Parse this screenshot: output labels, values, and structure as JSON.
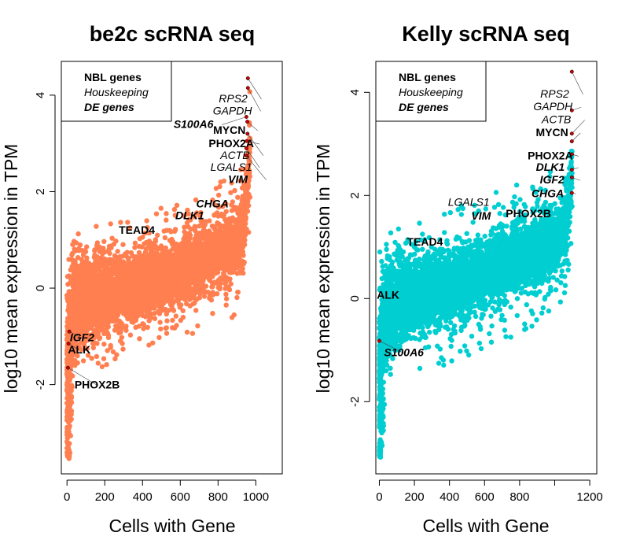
{
  "chart_data": [
    {
      "type": "scatter",
      "title": "be2c scRNA seq",
      "xlabel": "Cells with Gene",
      "ylabel": "log10 mean expression in TPM",
      "xlim": [
        -30,
        1140
      ],
      "ylim": [
        -3.85,
        4.7
      ],
      "xticks": [
        0,
        200,
        400,
        600,
        800,
        1000
      ],
      "yticks": [
        -2,
        0,
        2,
        4
      ],
      "color": "#FF7F50",
      "n_cells": 970,
      "legend": {
        "position": "top-left",
        "entries": [
          {
            "label": "NBL genes",
            "style": "bold"
          },
          {
            "label": "Houskeeping",
            "style": "italic"
          },
          {
            "label": "DE genes",
            "style": "bold-italic"
          }
        ]
      },
      "genes": [
        {
          "label": "RPS2",
          "style": "italic",
          "x": 958,
          "y": 4.35,
          "lx": 880,
          "ly": 3.85
        },
        {
          "label": "GAPDH",
          "style": "italic",
          "x": 958,
          "y": 4.15,
          "lx": 876,
          "ly": 3.6
        },
        {
          "label": "S100A6",
          "style": "bold-italic",
          "x": 950,
          "y": 3.55,
          "lx": 670,
          "ly": 3.32
        },
        {
          "label": "MYCN",
          "style": "bold",
          "x": 955,
          "y": 3.45,
          "lx": 860,
          "ly": 3.2
        },
        {
          "label": "PHOX2A",
          "style": "bold",
          "x": 952,
          "y": 3.05,
          "lx": 870,
          "ly": 2.92
        },
        {
          "label": "ACTB",
          "style": "italic",
          "x": 956,
          "y": 3.2,
          "lx": 890,
          "ly": 2.68
        },
        {
          "label": "LGALS1",
          "style": "italic",
          "x": 950,
          "y": 2.9,
          "lx": 870,
          "ly": 2.43
        },
        {
          "label": "VIM",
          "style": "bold-italic",
          "x": 948,
          "y": 2.75,
          "lx": 905,
          "ly": 2.18
        },
        {
          "label": "CHGA",
          "style": "bold-italic",
          "lx": 770,
          "ly": 1.67
        },
        {
          "label": "DLK1",
          "style": "bold-italic",
          "lx": 650,
          "ly": 1.43
        },
        {
          "label": "TEAD4",
          "style": "bold",
          "lx": 370,
          "ly": 1.13
        },
        {
          "label": "IGF2",
          "style": "bold-italic",
          "x": 12,
          "y": -0.9,
          "lx": 80,
          "ly": -1.1
        },
        {
          "label": "ALK",
          "style": "bold",
          "x": 8,
          "y": -1.15,
          "lx": 65,
          "ly": -1.35
        },
        {
          "label": "PHOX2B",
          "style": "bold",
          "x": 5,
          "y": -1.65,
          "lx": 160,
          "ly": -2.08
        }
      ]
    },
    {
      "type": "scatter",
      "title": "Kelly scRNA seq",
      "xlabel": "Cells with Gene",
      "ylabel": "log10 mean expression in TPM",
      "xlim": [
        -20,
        1240
      ],
      "ylim": [
        -3.4,
        4.6
      ],
      "xticks": [
        0,
        200,
        400,
        600,
        800,
        1200
      ],
      "extra_tick_positions": [
        1000
      ],
      "yticks": [
        -2,
        0,
        2,
        4
      ],
      "color": "#00CED1",
      "n_cells": 1100,
      "legend": {
        "position": "top-left",
        "entries": [
          {
            "label": "NBL genes",
            "style": "bold"
          },
          {
            "label": "Houskeeping",
            "style": "italic"
          },
          {
            "label": "DE genes",
            "style": "bold-italic"
          }
        ]
      },
      "genes": [
        {
          "label": "RPS2",
          "style": "italic",
          "x": 1098,
          "y": 4.4,
          "lx": 1000,
          "ly": 3.9
        },
        {
          "label": "GAPDH",
          "style": "italic",
          "x": 1098,
          "y": 3.65,
          "lx": 990,
          "ly": 3.65
        },
        {
          "label": "ACTB",
          "style": "italic",
          "x": 1098,
          "y": 3.2,
          "lx": 1010,
          "ly": 3.4
        },
        {
          "label": "MYCN",
          "style": "bold",
          "x": 1098,
          "y": 3.05,
          "lx": 985,
          "ly": 3.15
        },
        {
          "label": "PHOX2A",
          "style": "bold",
          "x": 1098,
          "y": 2.8,
          "lx": 975,
          "ly": 2.7
        },
        {
          "label": "DLK1",
          "style": "bold-italic",
          "x": 1098,
          "y": 2.5,
          "lx": 975,
          "ly": 2.48
        },
        {
          "label": "IGF2",
          "style": "bold-italic",
          "x": 1098,
          "y": 2.35,
          "lx": 985,
          "ly": 2.23
        },
        {
          "label": "CHGA",
          "style": "bold-italic",
          "x": 1098,
          "y": 2.05,
          "lx": 960,
          "ly": 1.97
        },
        {
          "label": "LGALS1",
          "style": "italic",
          "lx": 510,
          "ly": 1.8
        },
        {
          "label": "VIM",
          "style": "bold-italic",
          "lx": 580,
          "ly": 1.53
        },
        {
          "label": "PHOX2B",
          "style": "bold",
          "lx": 850,
          "ly": 1.58
        },
        {
          "label": "TEAD4",
          "style": "bold",
          "lx": 260,
          "ly": 1.03
        },
        {
          "label": "ALK",
          "style": "bold",
          "lx": 50,
          "ly": 0.0
        },
        {
          "label": "S100A6",
          "style": "bold-italic",
          "x": 0,
          "y": -0.82,
          "lx": 140,
          "ly": -1.12
        }
      ]
    }
  ]
}
